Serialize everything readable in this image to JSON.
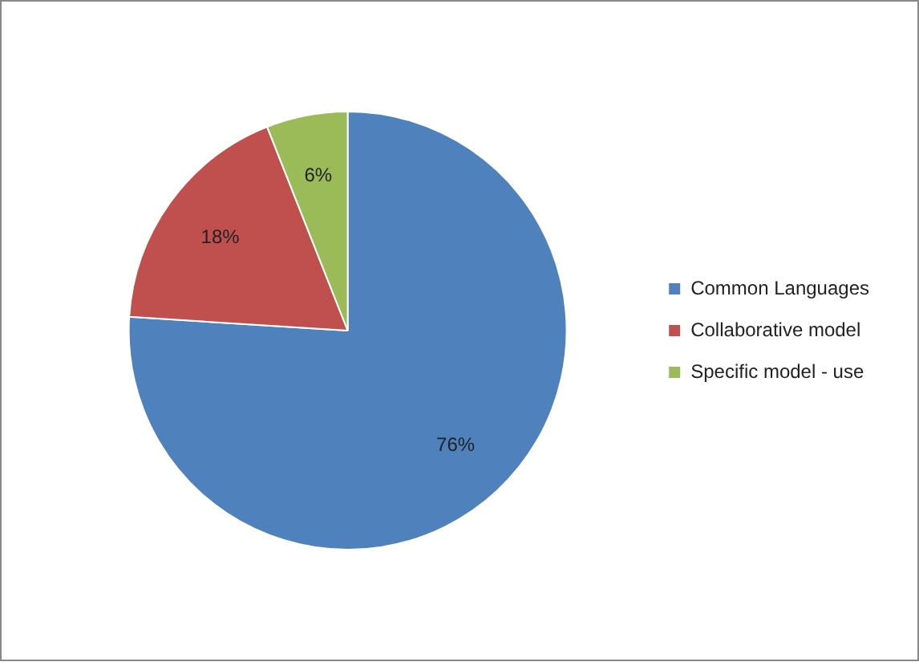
{
  "chart_data": {
    "type": "pie",
    "categories": [
      "Common Languages",
      "Collaborative model",
      "Specific model - use"
    ],
    "values": [
      76,
      18,
      6
    ],
    "colors": [
      "#4f81bd",
      "#c0504d",
      "#9bbb59"
    ],
    "value_labels": [
      "76%",
      "18%",
      "6%"
    ],
    "legend": "right"
  }
}
